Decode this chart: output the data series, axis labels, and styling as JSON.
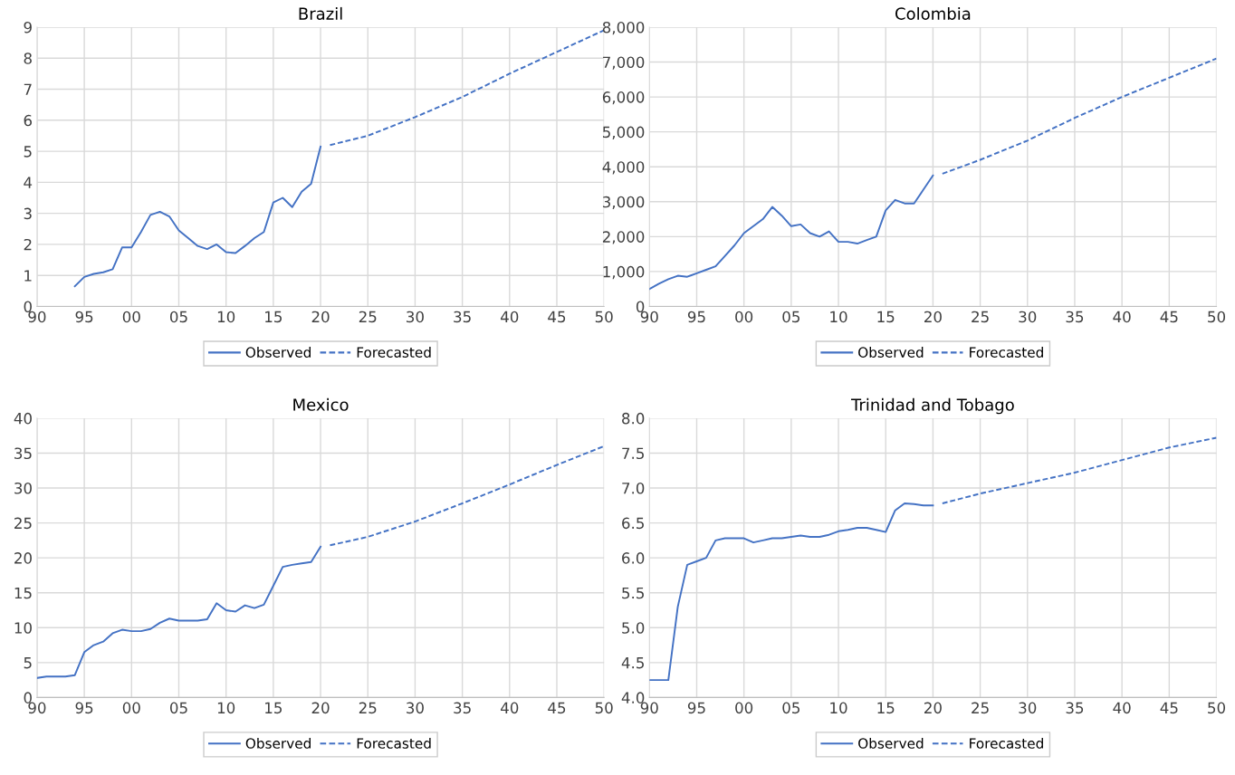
{
  "chart_data": [
    {
      "type": "line",
      "title": "Brazil",
      "xlim": [
        1990,
        2050
      ],
      "xticks": [
        {
          "value": 1990,
          "label": "90"
        },
        {
          "value": 1995,
          "label": "95"
        },
        {
          "value": 2000,
          "label": "00"
        },
        {
          "value": 2005,
          "label": "05"
        },
        {
          "value": 2010,
          "label": "10"
        },
        {
          "value": 2015,
          "label": "15"
        },
        {
          "value": 2020,
          "label": "20"
        },
        {
          "value": 2025,
          "label": "25"
        },
        {
          "value": 2030,
          "label": "30"
        },
        {
          "value": 2035,
          "label": "35"
        },
        {
          "value": 2040,
          "label": "40"
        },
        {
          "value": 2045,
          "label": "45"
        },
        {
          "value": 2050,
          "label": "50"
        }
      ],
      "ylim": [
        0,
        9
      ],
      "yticks": [
        0,
        1,
        2,
        3,
        4,
        5,
        6,
        7,
        8,
        9
      ],
      "grid": true,
      "legend": "bottom",
      "marker": "none",
      "series": [
        {
          "name": "Observed",
          "color": "#4472c4",
          "line_style": "solid",
          "x": [
            1994,
            1995,
            1996,
            1997,
            1998,
            1999,
            2000,
            2001,
            2002,
            2003,
            2004,
            2005,
            2006,
            2007,
            2008,
            2009,
            2010,
            2011,
            2012,
            2013,
            2014,
            2015,
            2016,
            2017,
            2018,
            2019,
            2020
          ],
          "values": [
            0.65,
            0.95,
            1.05,
            1.1,
            1.2,
            1.9,
            1.9,
            2.4,
            2.95,
            3.05,
            2.9,
            2.45,
            2.2,
            1.95,
            1.85,
            2.0,
            1.75,
            1.72,
            1.95,
            2.2,
            2.4,
            3.35,
            3.5,
            3.2,
            3.7,
            3.95,
            5.15
          ]
        },
        {
          "name": "Forecasted",
          "color": "#4472c4",
          "line_style": "dashed",
          "x": [
            2021,
            2025,
            2030,
            2035,
            2040,
            2045,
            2050
          ],
          "values": [
            5.2,
            5.5,
            6.1,
            6.75,
            7.5,
            8.2,
            8.9
          ]
        }
      ]
    },
    {
      "type": "line",
      "title": "Colombia",
      "xlim": [
        1990,
        2050
      ],
      "xticks": [
        {
          "value": 1990,
          "label": "90"
        },
        {
          "value": 1995,
          "label": "95"
        },
        {
          "value": 2000,
          "label": "00"
        },
        {
          "value": 2005,
          "label": "05"
        },
        {
          "value": 2010,
          "label": "10"
        },
        {
          "value": 2015,
          "label": "15"
        },
        {
          "value": 2020,
          "label": "20"
        },
        {
          "value": 2025,
          "label": "25"
        },
        {
          "value": 2030,
          "label": "30"
        },
        {
          "value": 2035,
          "label": "35"
        },
        {
          "value": 2040,
          "label": "40"
        },
        {
          "value": 2045,
          "label": "45"
        },
        {
          "value": 2050,
          "label": "50"
        }
      ],
      "ylim": [
        0,
        8000
      ],
      "yticks": [
        0,
        {
          "value": 1000,
          "label": "1,000"
        },
        {
          "value": 2000,
          "label": "2,000"
        },
        {
          "value": 3000,
          "label": "3,000"
        },
        {
          "value": 4000,
          "label": "4,000"
        },
        {
          "value": 5000,
          "label": "5,000"
        },
        {
          "value": 6000,
          "label": "6,000"
        },
        {
          "value": 7000,
          "label": "7,000"
        },
        {
          "value": 8000,
          "label": "8,000"
        }
      ],
      "grid": true,
      "legend": "bottom",
      "marker": "none",
      "series": [
        {
          "name": "Observed",
          "color": "#4472c4",
          "line_style": "solid",
          "x": [
            1990,
            1991,
            1992,
            1993,
            1994,
            1995,
            1996,
            1997,
            1998,
            1999,
            2000,
            2001,
            2002,
            2003,
            2004,
            2005,
            2006,
            2007,
            2008,
            2009,
            2010,
            2011,
            2012,
            2013,
            2014,
            2015,
            2016,
            2017,
            2018,
            2019,
            2020
          ],
          "values": [
            500,
            650,
            780,
            880,
            850,
            950,
            1050,
            1150,
            1450,
            1750,
            2100,
            2300,
            2500,
            2850,
            2600,
            2300,
            2350,
            2100,
            2000,
            2150,
            1850,
            1850,
            1800,
            1900,
            2000,
            2750,
            3050,
            2950,
            2950,
            3350,
            3750
          ]
        },
        {
          "name": "Forecasted",
          "color": "#4472c4",
          "line_style": "dashed",
          "x": [
            2021,
            2025,
            2030,
            2035,
            2040,
            2045,
            2050
          ],
          "values": [
            3800,
            4200,
            4750,
            5400,
            6000,
            6550,
            7100
          ]
        }
      ]
    },
    {
      "type": "line",
      "title": "Mexico",
      "xlim": [
        1990,
        2050
      ],
      "xticks": [
        {
          "value": 1990,
          "label": "90"
        },
        {
          "value": 1995,
          "label": "95"
        },
        {
          "value": 2000,
          "label": "00"
        },
        {
          "value": 2005,
          "label": "05"
        },
        {
          "value": 2010,
          "label": "10"
        },
        {
          "value": 2015,
          "label": "15"
        },
        {
          "value": 2020,
          "label": "20"
        },
        {
          "value": 2025,
          "label": "25"
        },
        {
          "value": 2030,
          "label": "30"
        },
        {
          "value": 2035,
          "label": "35"
        },
        {
          "value": 2040,
          "label": "40"
        },
        {
          "value": 2045,
          "label": "45"
        },
        {
          "value": 2050,
          "label": "50"
        }
      ],
      "ylim": [
        0,
        40
      ],
      "yticks": [
        0,
        5,
        10,
        15,
        20,
        25,
        30,
        35,
        40
      ],
      "grid": true,
      "legend": "bottom",
      "marker": "none",
      "series": [
        {
          "name": "Observed",
          "color": "#4472c4",
          "line_style": "solid",
          "x": [
            1990,
            1991,
            1992,
            1993,
            1994,
            1995,
            1996,
            1997,
            1998,
            1999,
            2000,
            2001,
            2002,
            2003,
            2004,
            2005,
            2006,
            2007,
            2008,
            2009,
            2010,
            2011,
            2012,
            2013,
            2014,
            2015,
            2016,
            2017,
            2018,
            2019,
            2020
          ],
          "values": [
            2.8,
            3.0,
            3.0,
            3.0,
            3.2,
            6.5,
            7.5,
            8.0,
            9.2,
            9.7,
            9.5,
            9.5,
            9.8,
            10.7,
            11.3,
            11.0,
            11.0,
            11.0,
            11.2,
            13.5,
            12.5,
            12.3,
            13.2,
            12.8,
            13.3,
            16.0,
            18.7,
            19.0,
            19.2,
            19.4,
            21.6
          ]
        },
        {
          "name": "Forecasted",
          "color": "#4472c4",
          "line_style": "dashed",
          "x": [
            2021,
            2025,
            2030,
            2035,
            2040,
            2045,
            2050
          ],
          "values": [
            21.8,
            23.0,
            25.2,
            27.8,
            30.5,
            33.3,
            36.0
          ]
        }
      ]
    },
    {
      "type": "line",
      "title": "Trinidad and Tobago",
      "xlim": [
        1990,
        2050
      ],
      "xticks": [
        {
          "value": 1990,
          "label": "90"
        },
        {
          "value": 1995,
          "label": "95"
        },
        {
          "value": 2000,
          "label": "00"
        },
        {
          "value": 2005,
          "label": "05"
        },
        {
          "value": 2010,
          "label": "10"
        },
        {
          "value": 2015,
          "label": "15"
        },
        {
          "value": 2020,
          "label": "20"
        },
        {
          "value": 2025,
          "label": "25"
        },
        {
          "value": 2030,
          "label": "30"
        },
        {
          "value": 2035,
          "label": "35"
        },
        {
          "value": 2040,
          "label": "40"
        },
        {
          "value": 2045,
          "label": "45"
        },
        {
          "value": 2050,
          "label": "50"
        }
      ],
      "ylim": [
        4.0,
        8.0
      ],
      "yticks": [
        {
          "value": 4.0,
          "label": "4.0"
        },
        4.5,
        {
          "value": 5.0,
          "label": "5.0"
        },
        5.5,
        {
          "value": 6.0,
          "label": "6.0"
        },
        6.5,
        {
          "value": 7.0,
          "label": "7.0"
        },
        7.5,
        {
          "value": 8.0,
          "label": "8.0"
        }
      ],
      "grid": true,
      "legend": "bottom",
      "marker": "none",
      "series": [
        {
          "name": "Observed",
          "color": "#4472c4",
          "line_style": "solid",
          "x": [
            1990,
            1991,
            1992,
            1993,
            1994,
            1995,
            1996,
            1997,
            1998,
            1999,
            2000,
            2001,
            2002,
            2003,
            2004,
            2005,
            2006,
            2007,
            2008,
            2009,
            2010,
            2011,
            2012,
            2013,
            2014,
            2015,
            2016,
            2017,
            2018,
            2019,
            2020
          ],
          "values": [
            4.25,
            4.25,
            4.25,
            5.3,
            5.9,
            5.95,
            6.0,
            6.25,
            6.28,
            6.28,
            6.28,
            6.22,
            6.25,
            6.28,
            6.28,
            6.3,
            6.32,
            6.3,
            6.3,
            6.33,
            6.38,
            6.4,
            6.43,
            6.43,
            6.4,
            6.37,
            6.68,
            6.78,
            6.77,
            6.75,
            6.75
          ]
        },
        {
          "name": "Forecasted",
          "color": "#4472c4",
          "line_style": "dashed",
          "x": [
            2021,
            2025,
            2030,
            2035,
            2040,
            2045,
            2050
          ],
          "values": [
            6.78,
            6.92,
            7.07,
            7.22,
            7.4,
            7.58,
            7.72
          ]
        }
      ]
    }
  ]
}
